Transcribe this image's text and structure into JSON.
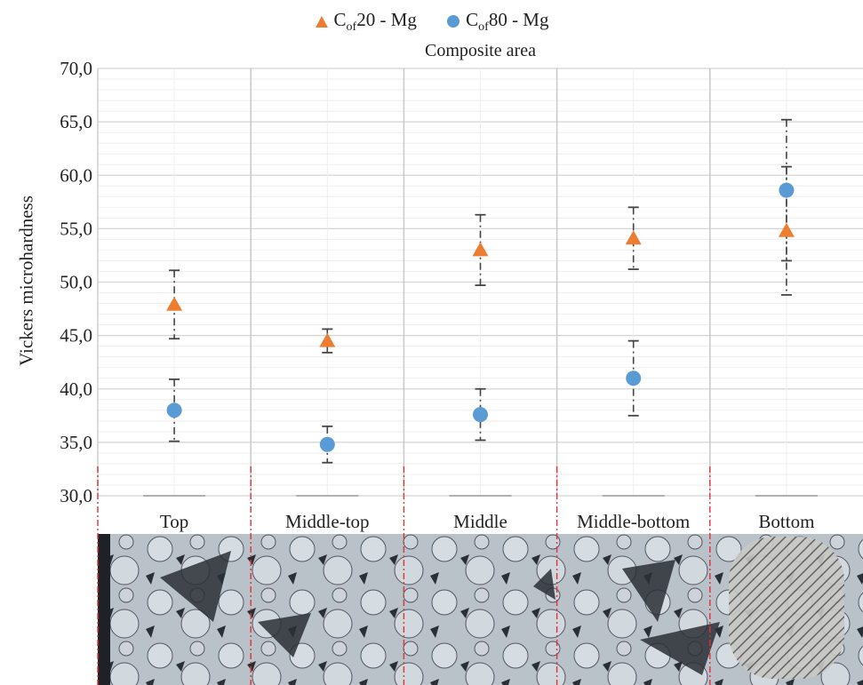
{
  "chart_data": {
    "type": "scatter",
    "legend": {
      "placement": "top-center",
      "entries": [
        {
          "prefix": "C",
          "sub": "of",
          "suffix": "20 - Mg",
          "color": "#ED7D31",
          "marker": "triangle"
        },
        {
          "prefix": "C",
          "sub": "of",
          "suffix": "80 - Mg",
          "color": "#5B9BD5",
          "marker": "circle"
        }
      ]
    },
    "subtitle": "Composite area",
    "ylabel": "Vickers microhardness",
    "ylim": [
      30,
      70
    ],
    "yticks": [
      "30,0",
      "35,0",
      "40,0",
      "45,0",
      "50,0",
      "55,0",
      "60,0",
      "65,0",
      "70,0"
    ],
    "categories": [
      "Top",
      "Middle-top",
      "Middle",
      "Middle-bottom",
      "Bottom"
    ],
    "series": [
      {
        "name": "Cof20 - Mg",
        "color": "#ED7D31",
        "marker": "triangle",
        "values": [
          47.9,
          44.5,
          53.0,
          54.1,
          54.8
        ],
        "error": [
          3.2,
          1.1,
          3.3,
          2.9,
          6.0
        ]
      },
      {
        "name": "Cof80 - Mg",
        "color": "#5B9BD5",
        "marker": "circle",
        "values": [
          38.0,
          34.8,
          37.6,
          41.0,
          58.6
        ],
        "error": [
          2.9,
          1.7,
          2.4,
          3.5,
          6.6
        ]
      }
    ],
    "grid": "on"
  }
}
